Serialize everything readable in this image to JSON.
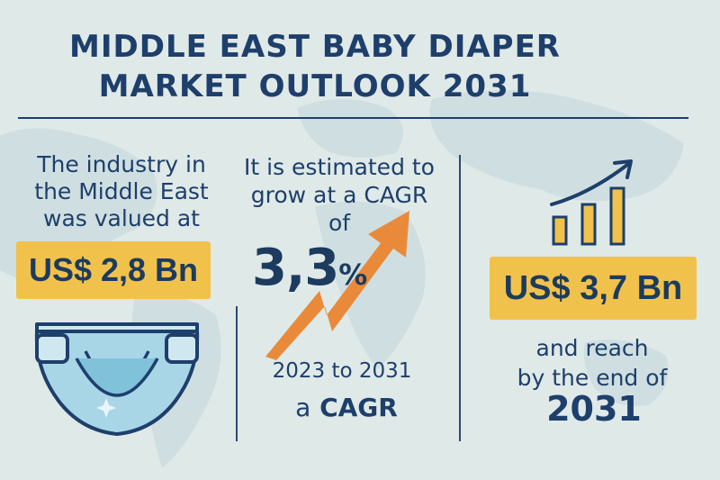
{
  "title": {
    "line1": "MIDDLE EAST BABY DIAPER",
    "line2": "MARKET OUTLOOK 2031"
  },
  "left": {
    "valued_line1": "The industry in",
    "valued_line2": "the Middle East",
    "valued_line3": "was valued at",
    "value": "US$ 2,8 Bn"
  },
  "middle": {
    "estimate_line1": "It is estimated to",
    "estimate_line2": "grow at a CAGR",
    "estimate_line3": "of",
    "cagr": "3,3",
    "cagr_unit": "%",
    "period": "2023 to 2031",
    "label_prefix": "a",
    "label": "CAGR"
  },
  "right": {
    "value": "US$ 3,7 Bn",
    "reach_line1": "and reach",
    "reach_line2": "by the end of",
    "year": "2031"
  },
  "icons": [
    "world-map-icon",
    "diaper-icon",
    "growth-arrow-icon",
    "bar-chart-icon"
  ],
  "colors": {
    "background": "#dfe9e8",
    "navy": "#1e3f6b",
    "badge": "#f1c24b",
    "arrow": "#e98a3a",
    "diaper": "#a9d6e6"
  }
}
